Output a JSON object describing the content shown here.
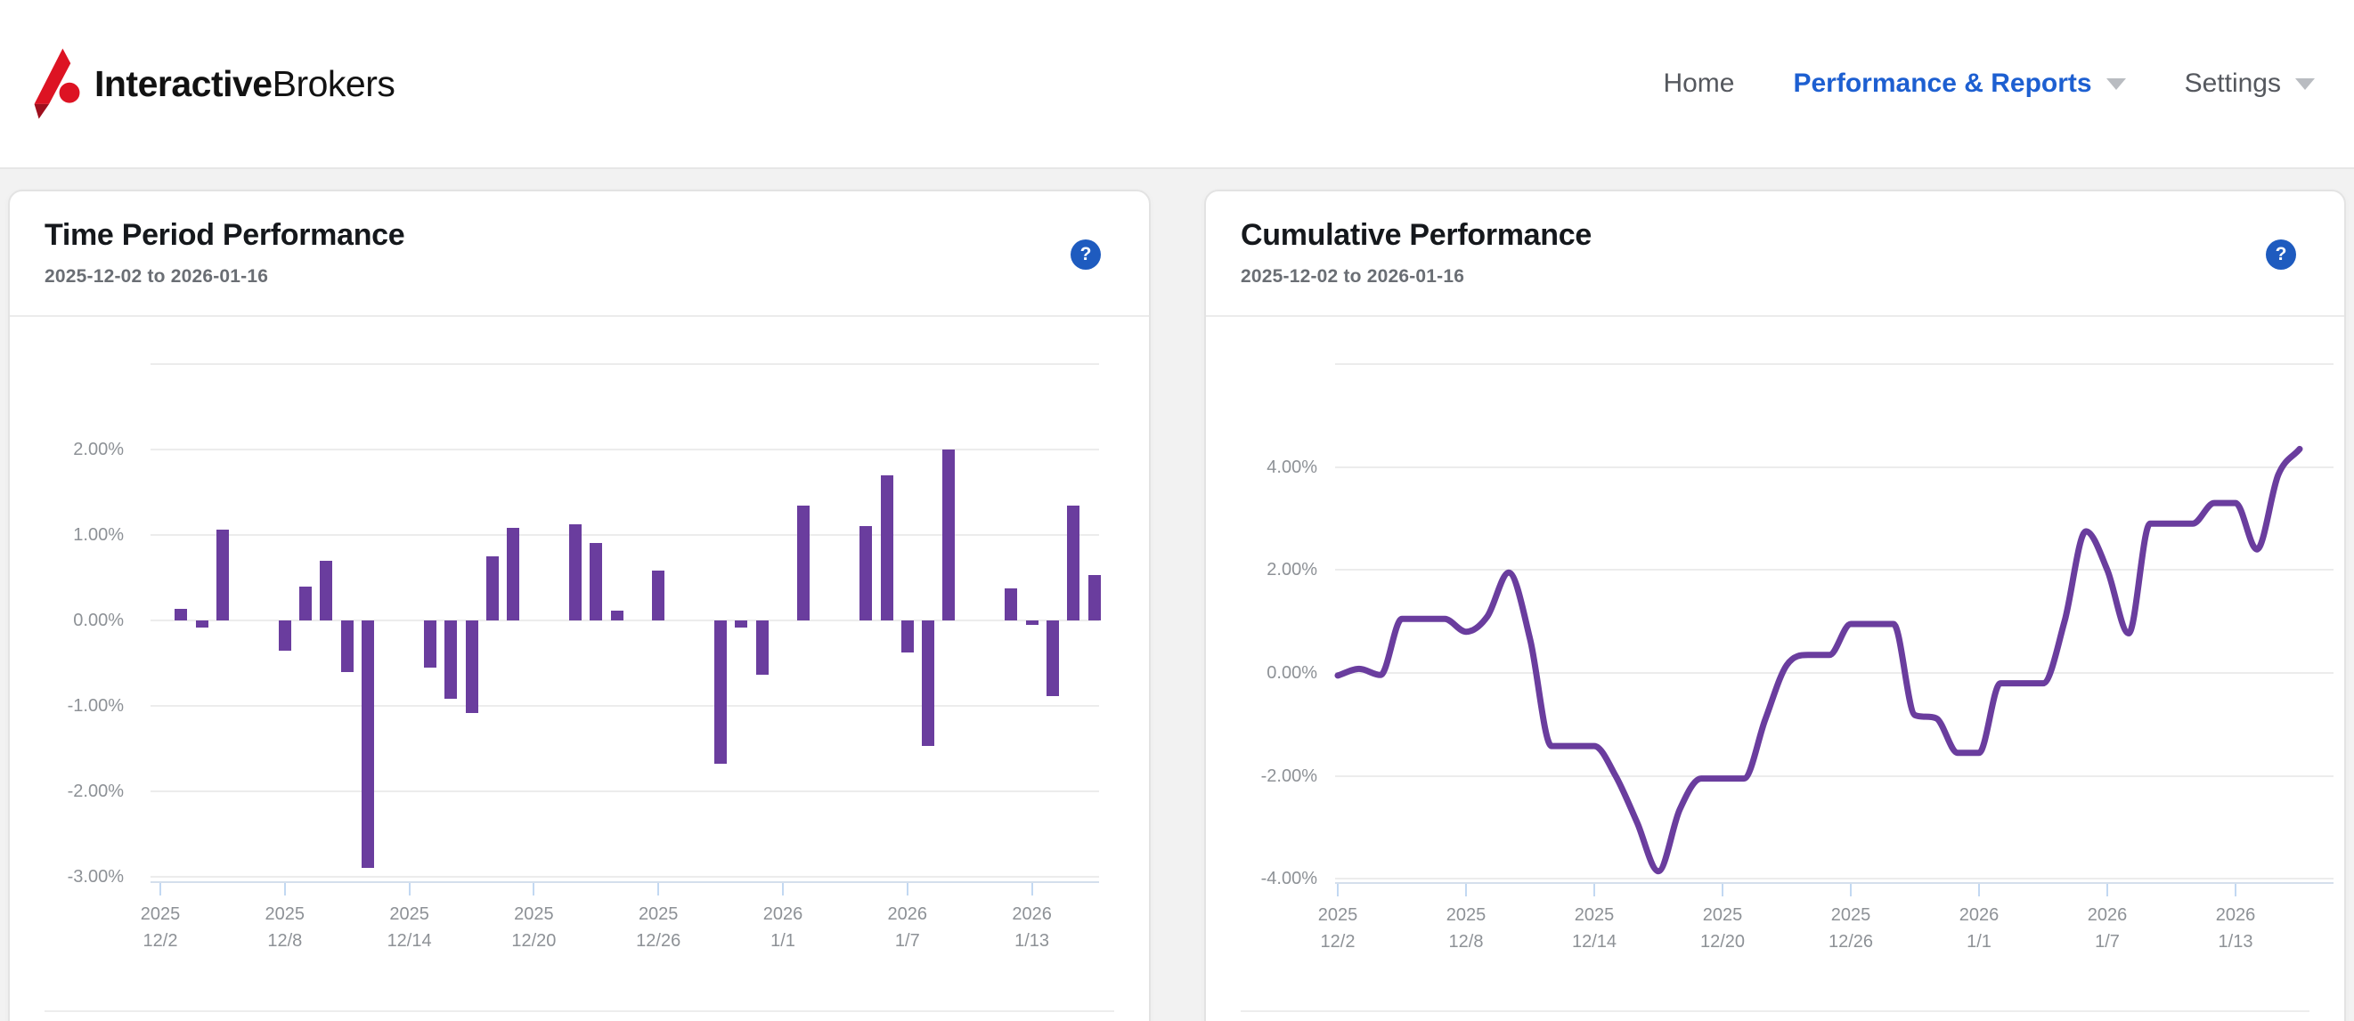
{
  "header": {
    "logo": {
      "text_bold": "Interactive",
      "text_regular": "Brokers"
    },
    "nav": [
      {
        "label": "Home",
        "active": false,
        "has_caret": false
      },
      {
        "label": "Performance & Reports",
        "active": true,
        "has_caret": true
      },
      {
        "label": "Settings",
        "active": false,
        "has_caret": true
      }
    ]
  },
  "cards": [
    {
      "title": "Time Period Performance",
      "subtitle": "2025-12-02 to 2026-01-16",
      "help_glyph": "?"
    },
    {
      "title": "Cumulative Performance",
      "subtitle": "2025-12-02 to 2026-01-16",
      "help_glyph": "?"
    }
  ],
  "colors": {
    "accent_purple": "#6a3d9e",
    "nav_active_blue": "#1d5fd1",
    "help_icon_blue": "#1e5bbf",
    "logo_red": "#dd1323",
    "logo_dark_red": "#9e0f1d",
    "gridline": "#ececec",
    "axis_line": "#d4dfec",
    "axis_tick": "#c2d8f2",
    "axis_text": "#8d9196"
  },
  "chart_data": [
    {
      "type": "bar",
      "title": "Time Period Performance",
      "date_range": "2025-12-02 to 2026-01-16",
      "ylim": [
        -3.2,
        3.0
      ],
      "grid_values": [
        3,
        2,
        1,
        0,
        -1,
        -2,
        -3
      ],
      "y_ticks": [
        {
          "v": 2,
          "label": "2.00%"
        },
        {
          "v": 1,
          "label": "1.00%"
        },
        {
          "v": 0,
          "label": "0.00%"
        },
        {
          "v": -1,
          "label": "-1.00%"
        },
        {
          "v": -2,
          "label": "-2.00%"
        },
        {
          "v": -3,
          "label": "-3.00%"
        }
      ],
      "x_ticks": [
        {
          "d": 0,
          "lines": [
            "2025",
            "12/2"
          ]
        },
        {
          "d": 6,
          "lines": [
            "2025",
            "12/8"
          ]
        },
        {
          "d": 12,
          "lines": [
            "2025",
            "12/14"
          ]
        },
        {
          "d": 18,
          "lines": [
            "2025",
            "12/20"
          ]
        },
        {
          "d": 24,
          "lines": [
            "2025",
            "12/26"
          ]
        },
        {
          "d": 30,
          "lines": [
            "2026",
            "1/1"
          ]
        },
        {
          "d": 36,
          "lines": [
            "2026",
            "1/7"
          ]
        },
        {
          "d": 42,
          "lines": [
            "2026",
            "1/13"
          ]
        }
      ],
      "points": [
        {
          "date": "2025-12-02",
          "label": "12/2",
          "d": 0,
          "value": 0.0
        },
        {
          "date": "2025-12-03",
          "label": "12/3",
          "d": 1,
          "value": 0.14
        },
        {
          "date": "2025-12-04",
          "label": "12/4",
          "d": 2,
          "value": -0.08
        },
        {
          "date": "2025-12-05",
          "label": "12/5",
          "d": 3,
          "value": 1.06
        },
        {
          "date": "2025-12-08",
          "label": "12/8",
          "d": 6,
          "value": -0.35
        },
        {
          "date": "2025-12-09",
          "label": "12/9",
          "d": 7,
          "value": 0.4
        },
        {
          "date": "2025-12-10",
          "label": "12/10",
          "d": 8,
          "value": 0.7
        },
        {
          "date": "2025-12-11",
          "label": "12/11",
          "d": 9,
          "value": -0.6
        },
        {
          "date": "2025-12-12",
          "label": "12/12",
          "d": 10,
          "value": -2.9
        },
        {
          "date": "2025-12-15",
          "label": "12/15",
          "d": 13,
          "value": -0.55
        },
        {
          "date": "2025-12-16",
          "label": "12/16",
          "d": 14,
          "value": -0.92
        },
        {
          "date": "2025-12-17",
          "label": "12/17",
          "d": 15,
          "value": -1.08
        },
        {
          "date": "2025-12-18",
          "label": "12/18",
          "d": 16,
          "value": 0.75
        },
        {
          "date": "2025-12-19",
          "label": "12/19",
          "d": 17,
          "value": 1.08
        },
        {
          "date": "2025-12-22",
          "label": "12/22",
          "d": 20,
          "value": 1.12
        },
        {
          "date": "2025-12-23",
          "label": "12/23",
          "d": 21,
          "value": 0.91
        },
        {
          "date": "2025-12-24",
          "label": "12/24",
          "d": 22,
          "value": 0.11
        },
        {
          "date": "2025-12-26",
          "label": "12/26",
          "d": 24,
          "value": 0.58
        },
        {
          "date": "2025-12-29",
          "label": "12/29",
          "d": 27,
          "value": -1.68
        },
        {
          "date": "2025-12-30",
          "label": "12/30",
          "d": 28,
          "value": -0.08
        },
        {
          "date": "2025-12-31",
          "label": "12/31",
          "d": 29,
          "value": -0.64
        },
        {
          "date": "2026-01-02",
          "label": "1/2",
          "d": 31,
          "value": 1.34
        },
        {
          "date": "2026-01-05",
          "label": "1/5",
          "d": 34,
          "value": 1.1
        },
        {
          "date": "2026-01-06",
          "label": "1/6",
          "d": 35,
          "value": 1.7
        },
        {
          "date": "2026-01-07",
          "label": "1/7",
          "d": 36,
          "value": -0.38
        },
        {
          "date": "2026-01-08",
          "label": "1/8",
          "d": 37,
          "value": -1.47
        },
        {
          "date": "2026-01-09",
          "label": "1/9",
          "d": 38,
          "value": 2.0
        },
        {
          "date": "2026-01-12",
          "label": "1/12",
          "d": 41,
          "value": 0.37
        },
        {
          "date": "2026-01-13",
          "label": "1/13",
          "d": 42,
          "value": -0.05
        },
        {
          "date": "2026-01-14",
          "label": "1/14",
          "d": 43,
          "value": -0.89
        },
        {
          "date": "2026-01-15",
          "label": "1/15",
          "d": 44,
          "value": 1.34
        },
        {
          "date": "2026-01-16",
          "label": "1/16",
          "d": 45,
          "value": 0.53
        }
      ]
    },
    {
      "type": "line",
      "title": "Cumulative Performance",
      "date_range": "2025-12-02 to 2026-01-16",
      "ylim": [
        -4.35,
        6.0
      ],
      "grid_values": [
        6,
        4,
        2,
        0,
        -2,
        -4
      ],
      "y_ticks": [
        {
          "v": 4,
          "label": "4.00%"
        },
        {
          "v": 2,
          "label": "2.00%"
        },
        {
          "v": 0,
          "label": "0.00%"
        },
        {
          "v": -2,
          "label": "-2.00%"
        },
        {
          "v": -4,
          "label": "-4.00%"
        }
      ],
      "x_ticks": [
        {
          "d": 0,
          "lines": [
            "2025",
            "12/2"
          ]
        },
        {
          "d": 6,
          "lines": [
            "2025",
            "12/8"
          ]
        },
        {
          "d": 12,
          "lines": [
            "2025",
            "12/14"
          ]
        },
        {
          "d": 18,
          "lines": [
            "2025",
            "12/20"
          ]
        },
        {
          "d": 24,
          "lines": [
            "2025",
            "12/26"
          ]
        },
        {
          "d": 30,
          "lines": [
            "2026",
            "1/1"
          ]
        },
        {
          "d": 36,
          "lines": [
            "2026",
            "1/7"
          ]
        },
        {
          "d": 42,
          "lines": [
            "2026",
            "1/13"
          ]
        }
      ],
      "points": [
        {
          "date": "2025-12-02",
          "label": "12/2",
          "d": 0,
          "value": -0.05
        },
        {
          "date": "2025-12-03",
          "label": "12/3",
          "d": 1,
          "value": 0.08
        },
        {
          "date": "2025-12-04",
          "label": "12/4",
          "d": 2,
          "value": -0.04
        },
        {
          "date": "2025-12-05",
          "label": "12/5",
          "d": 3,
          "value": 1.05
        },
        {
          "date": "2025-12-08",
          "label": "12/8",
          "d": 6,
          "value": 0.8
        },
        {
          "date": "2025-12-09",
          "label": "12/9",
          "d": 7,
          "value": 1.1
        },
        {
          "date": "2025-12-10",
          "label": "12/10",
          "d": 8,
          "value": 1.95
        },
        {
          "date": "2025-12-11",
          "label": "12/11",
          "d": 9,
          "value": 0.65
        },
        {
          "date": "2025-12-12",
          "label": "12/12",
          "d": 10,
          "value": -1.42
        },
        {
          "date": "2025-12-15",
          "label": "12/15",
          "d": 13,
          "value": -2.0
        },
        {
          "date": "2025-12-16",
          "label": "12/16",
          "d": 14,
          "value": -2.9
        },
        {
          "date": "2025-12-17",
          "label": "12/17",
          "d": 15,
          "value": -3.85
        },
        {
          "date": "2025-12-18",
          "label": "12/18",
          "d": 16,
          "value": -2.65
        },
        {
          "date": "2025-12-19",
          "label": "12/19",
          "d": 17,
          "value": -2.05
        },
        {
          "date": "2025-12-22",
          "label": "12/22",
          "d": 20,
          "value": -0.9
        },
        {
          "date": "2025-12-23",
          "label": "12/23",
          "d": 21,
          "value": 0.15
        },
        {
          "date": "2025-12-24",
          "label": "12/24",
          "d": 22,
          "value": 0.35
        },
        {
          "date": "2025-12-26",
          "label": "12/26",
          "d": 24,
          "value": 0.95
        },
        {
          "date": "2025-12-29",
          "label": "12/29",
          "d": 27,
          "value": -0.82
        },
        {
          "date": "2025-12-30",
          "label": "12/30",
          "d": 28,
          "value": -0.88
        },
        {
          "date": "2025-12-31",
          "label": "12/31",
          "d": 29,
          "value": -1.55
        },
        {
          "date": "2026-01-02",
          "label": "1/2",
          "d": 31,
          "value": -0.2
        },
        {
          "date": "2026-01-05",
          "label": "1/5",
          "d": 34,
          "value": 1.0
        },
        {
          "date": "2026-01-06",
          "label": "1/6",
          "d": 35,
          "value": 2.75
        },
        {
          "date": "2026-01-07",
          "label": "1/7",
          "d": 36,
          "value": 2.0
        },
        {
          "date": "2026-01-08",
          "label": "1/8",
          "d": 37,
          "value": 0.77
        },
        {
          "date": "2026-01-09",
          "label": "1/9",
          "d": 38,
          "value": 2.9
        },
        {
          "date": "2026-01-12",
          "label": "1/12",
          "d": 41,
          "value": 3.3
        },
        {
          "date": "2026-01-13",
          "label": "1/13",
          "d": 42,
          "value": 3.3
        },
        {
          "date": "2026-01-14",
          "label": "1/14",
          "d": 43,
          "value": 2.4
        },
        {
          "date": "2026-01-15",
          "label": "1/15",
          "d": 44,
          "value": 3.85
        },
        {
          "date": "2026-01-16",
          "label": "1/16",
          "d": 45,
          "value": 4.35
        }
      ]
    }
  ]
}
